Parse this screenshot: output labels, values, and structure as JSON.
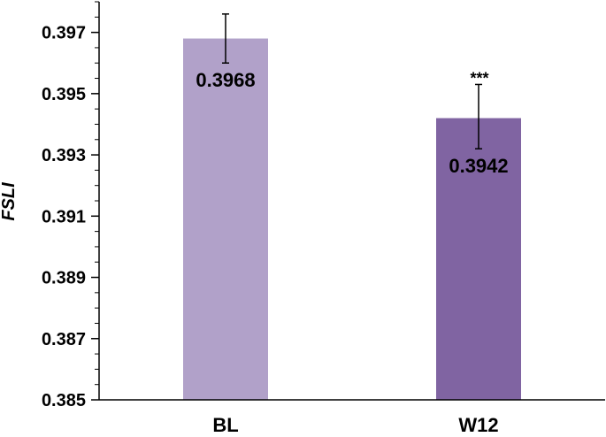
{
  "chart_data": {
    "type": "bar",
    "title": "",
    "xlabel": "",
    "ylabel": "FSLI",
    "categories": [
      "BL",
      "W12"
    ],
    "values": [
      0.3968,
      0.3942
    ],
    "error_upper": [
      0.3976,
      0.3953
    ],
    "error_lower": [
      0.396,
      0.3932
    ],
    "value_labels": [
      "0.3968",
      "0.3942"
    ],
    "significance": [
      "",
      "***"
    ],
    "bar_colors": [
      "#b1a1c9",
      "#8064a2"
    ],
    "ylim": [
      0.385,
      0.398
    ],
    "yticks": [
      0.385,
      0.387,
      0.389,
      0.391,
      0.393,
      0.395,
      0.397
    ],
    "ytick_labels": [
      "0.385",
      "0.387",
      "0.389",
      "0.391",
      "0.393",
      "0.395",
      "0.397"
    ],
    "minor_tick_step": 0.0005,
    "grid": false,
    "legend": "none"
  }
}
